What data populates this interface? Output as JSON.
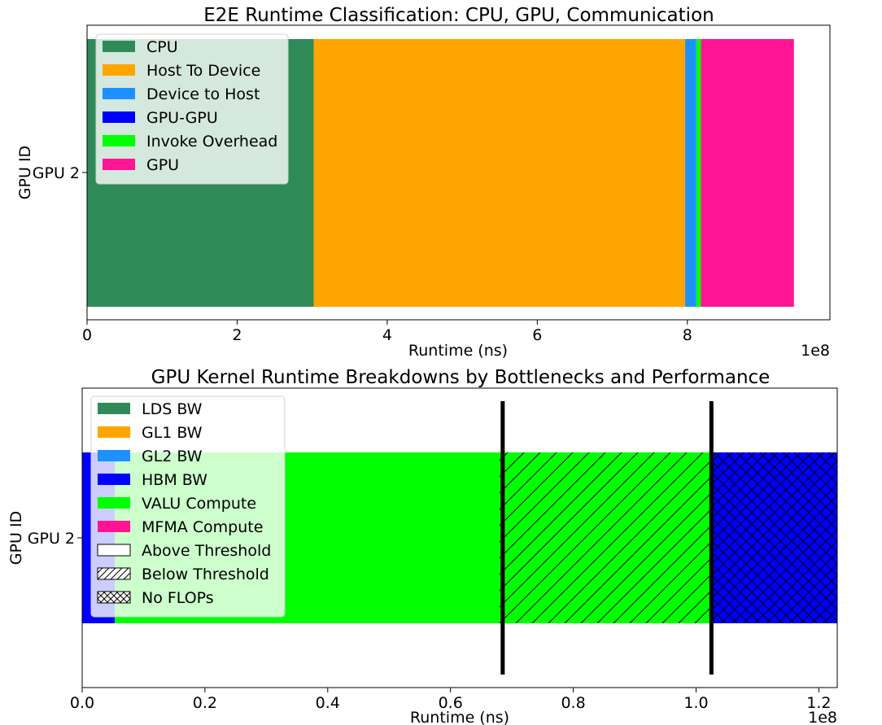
{
  "chart_data": [
    {
      "type": "bar",
      "orientation": "horizontal",
      "stacked": true,
      "title": "E2E Runtime Classification: CPU, GPU, Communication",
      "xlabel": "Runtime (ns)",
      "ylabel": "GPU ID",
      "x_offset_text": "1e8",
      "xlim": [
        0,
        9.9
      ],
      "xticks": [
        0,
        2,
        4,
        6,
        8
      ],
      "xtick_labels": [
        "0",
        "2",
        "4",
        "6",
        "8"
      ],
      "categories": [
        "GPU 2"
      ],
      "legend_position": "upper-left",
      "segments": [
        {
          "name": "CPU",
          "start": 0,
          "end": 3.02,
          "color": "#2e8b57"
        },
        {
          "name": "Host To Device",
          "start": 3.02,
          "end": 7.97,
          "color": "#ffa500"
        },
        {
          "name": "Device to Host",
          "start": 7.97,
          "end": 8.12,
          "color": "#1e90ff"
        },
        {
          "name": "GPU-GPU",
          "start": 8.12,
          "end": 8.12,
          "color": "#0000ff"
        },
        {
          "name": "Invoke Overhead",
          "start": 8.12,
          "end": 8.18,
          "color": "#00ff00"
        },
        {
          "name": "GPU",
          "start": 8.18,
          "end": 9.42,
          "color": "#ff1493"
        }
      ],
      "legend": [
        {
          "label": "CPU",
          "color": "#2e8b57"
        },
        {
          "label": "Host To Device",
          "color": "#ffa500"
        },
        {
          "label": "Device to Host",
          "color": "#1e90ff"
        },
        {
          "label": "GPU-GPU",
          "color": "#0000ff"
        },
        {
          "label": "Invoke Overhead",
          "color": "#00ff00"
        },
        {
          "label": "GPU",
          "color": "#ff1493"
        }
      ]
    },
    {
      "type": "bar",
      "orientation": "horizontal",
      "stacked": true,
      "title": "GPU Kernel Runtime Breakdowns by Bottlenecks and Performance",
      "xlabel": "Runtime (ns)",
      "ylabel": "GPU ID",
      "x_offset_text": "1e8",
      "xlim": [
        0,
        1.23
      ],
      "xticks": [
        0,
        0.2,
        0.4,
        0.6,
        0.8,
        1.0,
        1.2
      ],
      "xtick_labels": [
        "0.0",
        "0.2",
        "0.4",
        "0.6",
        "0.8",
        "1.0",
        "1.2"
      ],
      "categories": [
        "GPU 2"
      ],
      "legend_position": "upper-left",
      "segments": [
        {
          "name": "HBM BW",
          "start": 0,
          "end": 0.053,
          "color": "#0000ff",
          "hatch": "none"
        },
        {
          "name": "VALU Compute",
          "start": 0.053,
          "end": 0.68,
          "color": "#00ff00",
          "hatch": "none"
        },
        {
          "name": "VALU Compute",
          "start": 0.68,
          "end": 1.025,
          "color": "#00ff00",
          "hatch": "below-threshold"
        },
        {
          "name": "HBM BW",
          "start": 1.025,
          "end": 1.23,
          "color": "#0000ff",
          "hatch": "no-flops"
        }
      ],
      "vlines": [
        0.685,
        1.025
      ],
      "legend": [
        {
          "label": "LDS BW",
          "color": "#2e8b57",
          "swatch": "solid"
        },
        {
          "label": "GL1 BW",
          "color": "#ffa500",
          "swatch": "solid"
        },
        {
          "label": "GL2 BW",
          "color": "#1e90ff",
          "swatch": "solid"
        },
        {
          "label": "HBM BW",
          "color": "#0000ff",
          "swatch": "solid"
        },
        {
          "label": "VALU Compute",
          "color": "#00ff00",
          "swatch": "solid"
        },
        {
          "label": "MFMA Compute",
          "color": "#ff1493",
          "swatch": "solid"
        },
        {
          "label": "Above Threshold",
          "color": "#ffffff",
          "swatch": "above-threshold"
        },
        {
          "label": "Below Threshold",
          "color": "#ffffff",
          "swatch": "below-threshold"
        },
        {
          "label": "No FLOPs",
          "color": "#ffffff",
          "swatch": "no-flops"
        }
      ]
    }
  ]
}
